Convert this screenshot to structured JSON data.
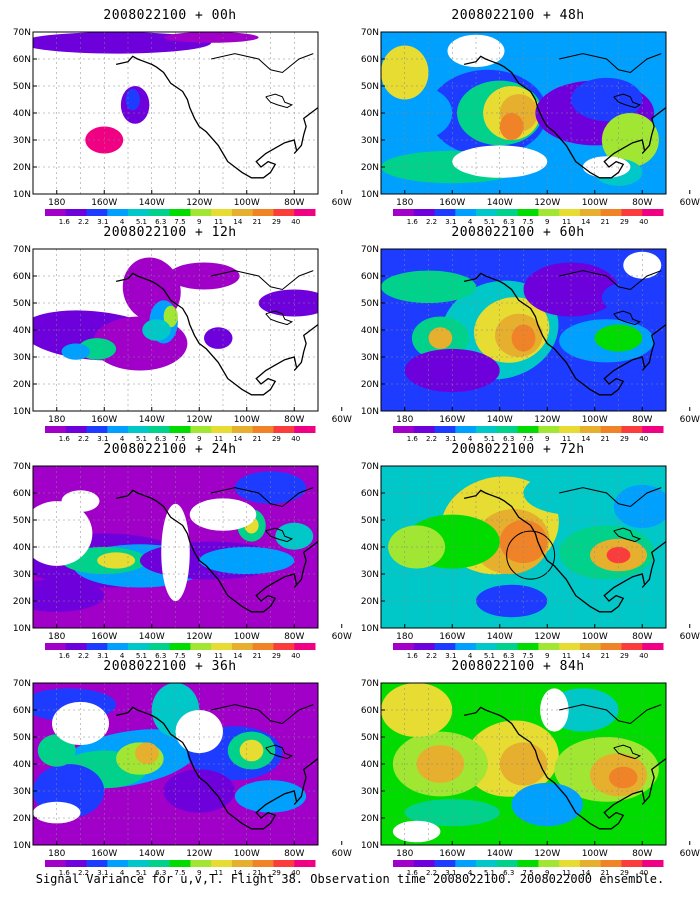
{
  "panels": [
    {
      "title": "2008022100 + 00h"
    },
    {
      "title": "2008022100 + 48h"
    },
    {
      "title": "2008022100 + 12h"
    },
    {
      "title": "2008022100 + 60h"
    },
    {
      "title": "2008022100 + 24h"
    },
    {
      "title": "2008022100 + 72h"
    },
    {
      "title": "2008022100 + 36h"
    },
    {
      "title": "2008022100 + 84h"
    }
  ],
  "axes": {
    "y_ticks": [
      "70N",
      "60N",
      "50N",
      "40N",
      "30N",
      "20N",
      "10N"
    ],
    "x_ticks": [
      "180",
      "160W",
      "140W",
      "120W",
      "100W",
      "80W",
      "60W"
    ]
  },
  "colorbar": {
    "labels": [
      "1.6",
      "2.2",
      "3.1",
      "4",
      "5.1",
      "6.3",
      "7.5",
      "9",
      "11",
      "14",
      "21",
      "29",
      "40"
    ],
    "colors": [
      "#a000c8",
      "#6e00dc",
      "#1e3cff",
      "#00a0ff",
      "#00c8c8",
      "#00d28c",
      "#00dc00",
      "#a0e632",
      "#e6dc32",
      "#e6af2d",
      "#f08228",
      "#fa3c3c",
      "#f00082"
    ]
  },
  "caption": "Signal Variance for u,v,T. Flight 38. Observation time 2008022100. 2008022000 ensemble."
}
